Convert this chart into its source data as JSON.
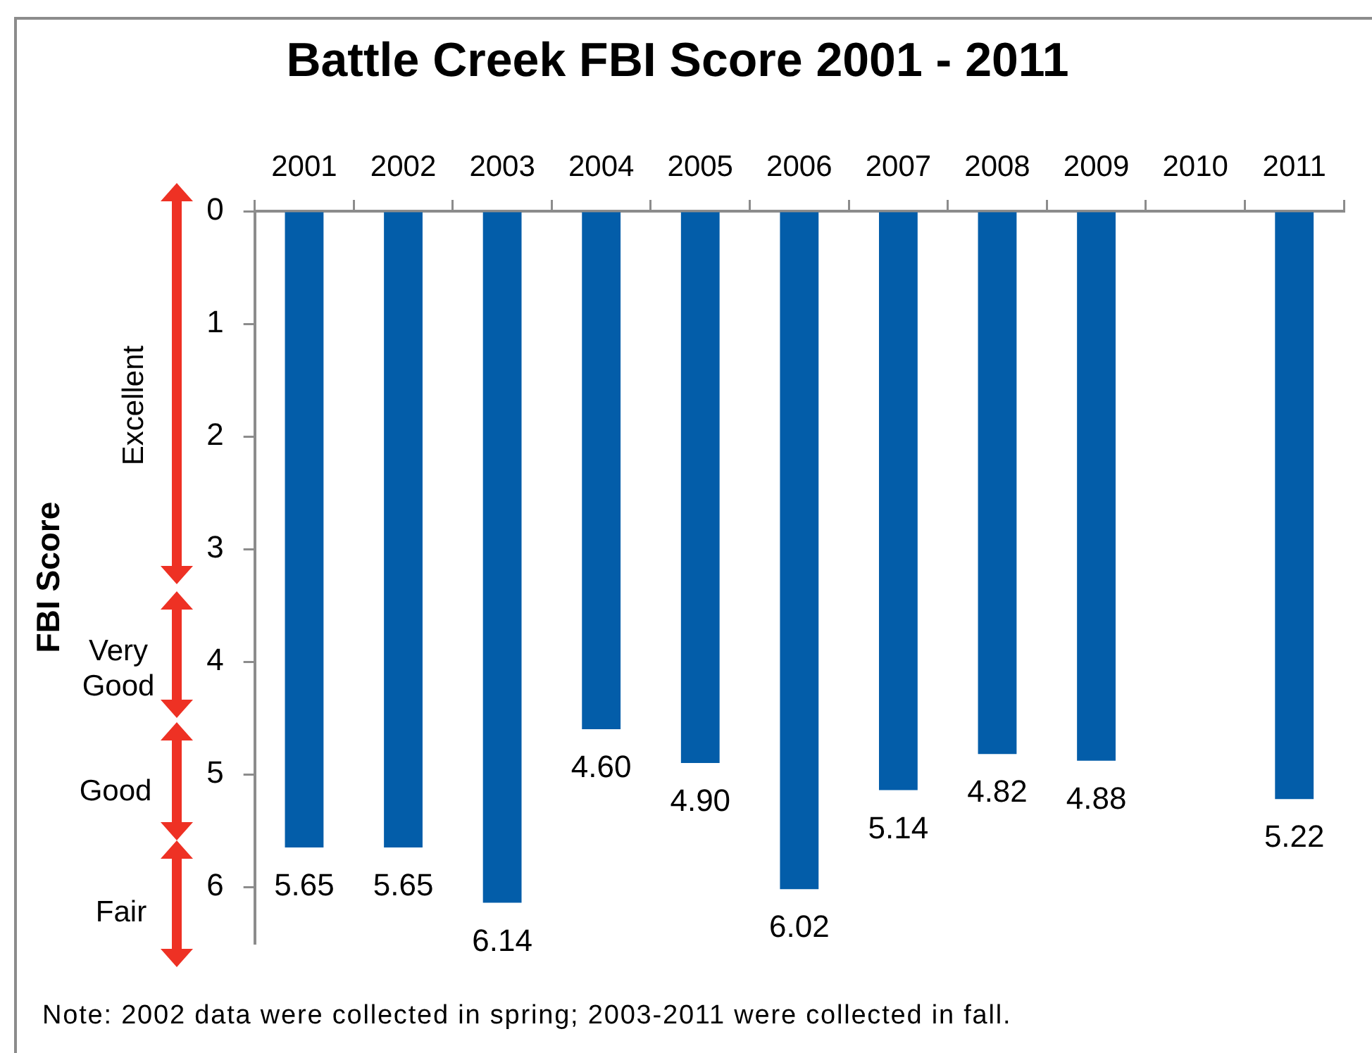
{
  "chart_data": {
    "type": "bar",
    "title": "Battle Creek FBI Score 2001 - 2011",
    "ylabel": "FBI Score",
    "categories": [
      "2001",
      "2002",
      "2003",
      "2004",
      "2005",
      "2006",
      "2007",
      "2008",
      "2009",
      "2010",
      "2011"
    ],
    "values": [
      5.65,
      5.65,
      6.14,
      4.6,
      4.9,
      6.02,
      5.14,
      4.82,
      4.88,
      null,
      5.22
    ],
    "value_labels": [
      "5.65",
      "5.65",
      "6.14",
      "4.60",
      "4.90",
      "6.02",
      "5.14",
      "4.82",
      "4.88",
      null,
      "5.22"
    ],
    "color": "#035da9",
    "ylim": [
      6.5,
      0
    ],
    "yticks": [
      0,
      1,
      2,
      3,
      4,
      5,
      6
    ],
    "grid": false,
    "legend": false,
    "annotations": [
      "Excellent",
      "Very Good",
      "Good",
      "Fair",
      "Note: 2002 data were collected in spring; 2003-2011 were collected in fall."
    ]
  }
}
